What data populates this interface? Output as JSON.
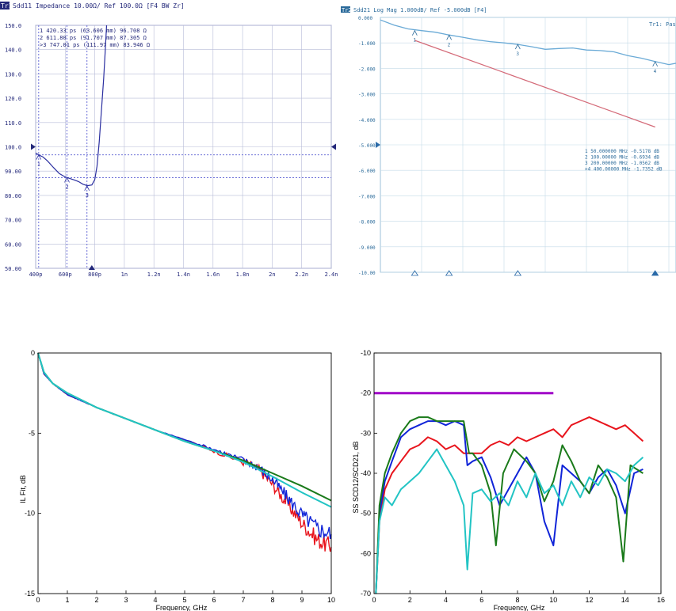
{
  "chart_data": [
    {
      "id": "tdr",
      "type": "line",
      "header": "Sdd11 Impedance 10.00Ω/ Ref 100.0Ω [F4 BW Zr]",
      "trace_tag": "Tr1",
      "colors": {
        "trace": "#2b2fa0",
        "grid": "#b8bcd8",
        "text": "#23287a",
        "marker_line": "#6c70d8"
      },
      "xlim": [
        0.4,
        2.4
      ],
      "ylim": [
        50,
        150
      ],
      "xticks": [
        {
          "v": 0.4,
          "label": "400p"
        },
        {
          "v": 0.6,
          "label": "600p"
        },
        {
          "v": 0.8,
          "label": "800p"
        },
        {
          "v": 1.0,
          "label": "1n"
        },
        {
          "v": 1.2,
          "label": "1.2n"
        },
        {
          "v": 1.4,
          "label": "1.4n"
        },
        {
          "v": 1.6,
          "label": "1.6n"
        },
        {
          "v": 1.8,
          "label": "1.8n"
        },
        {
          "v": 2.0,
          "label": "2n"
        },
        {
          "v": 2.2,
          "label": "2.2n"
        },
        {
          "v": 2.4,
          "label": "2.4n"
        }
      ],
      "yticks": [
        {
          "v": 150,
          "label": "150.0"
        },
        {
          "v": 140,
          "label": "140.0"
        },
        {
          "v": 130,
          "label": "130.0"
        },
        {
          "v": 120,
          "label": "120.0"
        },
        {
          "v": 110,
          "label": "110.0"
        },
        {
          "v": 100,
          "label": "100.0"
        },
        {
          "v": 90,
          "label": "90.00"
        },
        {
          "v": 80,
          "label": "80.00"
        },
        {
          "v": 70,
          "label": "70.00"
        },
        {
          "v": 60,
          "label": "60.00"
        },
        {
          "v": 50,
          "label": "50.00"
        }
      ],
      "markers": [
        {
          "label": "1",
          "x": 0.42033,
          "y": 96.708,
          "text": " 1   420.33 ps (63.606 mm)  96.708 Ω"
        },
        {
          "label": "2",
          "x": 0.6118,
          "y": 87.305,
          "text": " 2   611.80 ps (91.707 mm)  87.305 Ω"
        },
        {
          "label": "3",
          "x": 0.74701,
          "y": 83.946,
          "text": ">3   747.01 ps (111.97 mm)  83.946 Ω"
        }
      ],
      "ref_lines": [
        96.708,
        87.305
      ],
      "x": [
        0.4,
        0.42,
        0.45,
        0.48,
        0.52,
        0.56,
        0.6,
        0.63,
        0.66,
        0.69,
        0.72,
        0.75,
        0.78,
        0.8,
        0.815,
        0.83,
        0.845,
        0.86,
        0.87,
        0.88
      ],
      "y": [
        97.5,
        96.7,
        95.8,
        94.2,
        91.5,
        89.0,
        87.6,
        87.0,
        86.4,
        85.7,
        84.6,
        84.0,
        84.3,
        86.5,
        92.0,
        102.0,
        115.0,
        128.0,
        139.0,
        150.0
      ]
    },
    {
      "id": "vna",
      "type": "line",
      "header": "Sdd21 Log Mag 1.000dB/ Ref -5.000dB [F4]",
      "trace_tag": "Tr2",
      "status_text": "Tr1: Pass",
      "colors": {
        "trace": "#6aaad6",
        "limit": "#d46a78",
        "grid": "#c4dbe8",
        "text": "#2a6a9a",
        "marker": "#2a6aa8"
      },
      "xlim": [
        0,
        600
      ],
      "ylim": [
        -10,
        0
      ],
      "yticks": [
        {
          "v": 0,
          "label": "0.000"
        },
        {
          "v": -1,
          "label": "-1.000"
        },
        {
          "v": -2,
          "label": "-2.000"
        },
        {
          "v": -3,
          "label": "-3.000"
        },
        {
          "v": -4,
          "label": "-4.000"
        },
        {
          "v": -5,
          "label": "-5.000"
        },
        {
          "v": -6,
          "label": "-6.000"
        },
        {
          "v": -7,
          "label": "-7.000"
        },
        {
          "v": -8,
          "label": "-8.000"
        },
        {
          "v": -9,
          "label": "-9.000"
        },
        {
          "v": -10,
          "label": "-10.00"
        }
      ],
      "x_divisions": 10,
      "markers": [
        {
          "label": "1",
          "x": 50,
          "y": -0.5178,
          "text": " 1   50.000000 MHz -0.5178 dB"
        },
        {
          "label": "2",
          "x": 100,
          "y": -0.6934,
          "text": " 2  100.00000 MHz -0.6934 dB"
        },
        {
          "label": "3",
          "x": 200,
          "y": -1.0562,
          "text": " 3  200.00000 MHz -1.0562 dB"
        },
        {
          "label": "4",
          "x": 400,
          "y": -1.7352,
          "text": ">4  400.00000 MHz -1.7352 dB"
        }
      ],
      "limit_line": {
        "x": [
          50,
          400
        ],
        "y": [
          -0.9,
          -4.3
        ]
      },
      "x": [
        0,
        20,
        40,
        60,
        80,
        100,
        120,
        140,
        160,
        180,
        200,
        220,
        240,
        260,
        280,
        300,
        320,
        340,
        360,
        380,
        400,
        420,
        440,
        460,
        480,
        500,
        520,
        540,
        560,
        580,
        600
      ],
      "y": [
        -0.1,
        -0.3,
        -0.45,
        -0.52,
        -0.58,
        -0.69,
        -0.78,
        -0.88,
        -0.95,
        -1.0,
        -1.06,
        -1.15,
        -1.25,
        -1.22,
        -1.2,
        -1.28,
        -1.3,
        -1.35,
        -1.5,
        -1.6,
        -1.73,
        -1.85,
        -1.75,
        -1.82,
        -2.0,
        -1.85,
        -1.75,
        -2.05,
        -2.1,
        -1.95,
        -1.9
      ]
    },
    {
      "id": "il",
      "type": "line",
      "xlabel": "Frequency, GHz",
      "ylabel": "IL Fit, dB",
      "xlim": [
        0,
        10
      ],
      "ylim": [
        -15,
        0
      ],
      "xticks": [
        0,
        1,
        2,
        3,
        4,
        5,
        6,
        7,
        8,
        9,
        10
      ],
      "yticks": [
        0,
        -5,
        -10,
        -15
      ],
      "series": [
        {
          "color": "#e8141c",
          "x": [
            0,
            0.2,
            0.5,
            1,
            1.5,
            2,
            3,
            4,
            5,
            6,
            7,
            7.5,
            8,
            8.5,
            9,
            9.5,
            10
          ],
          "y": [
            0,
            -1.3,
            -1.9,
            -2.6,
            -3.0,
            -3.4,
            -4.1,
            -4.8,
            -5.4,
            -6.1,
            -6.8,
            -7.2,
            -8.2,
            -9.4,
            -10.6,
            -11.6,
            -12.1
          ],
          "noisy": true
        },
        {
          "color": "#1024d8",
          "x": [
            0,
            0.2,
            0.5,
            1,
            1.5,
            2,
            3,
            4,
            5,
            6,
            7,
            7.5,
            8,
            8.5,
            9,
            9.5,
            10
          ],
          "y": [
            0,
            -1.3,
            -1.9,
            -2.6,
            -3.0,
            -3.4,
            -4.1,
            -4.8,
            -5.4,
            -6.0,
            -6.7,
            -7.1,
            -7.9,
            -9.0,
            -10.1,
            -10.9,
            -11.3
          ],
          "noisy": true
        },
        {
          "color": "#1a7a1a",
          "x": [
            0,
            0.2,
            0.5,
            1,
            2,
            3,
            4,
            5,
            6,
            7,
            8,
            9,
            10
          ],
          "y": [
            0,
            -1.2,
            -1.9,
            -2.5,
            -3.4,
            -4.1,
            -4.8,
            -5.5,
            -6.1,
            -6.7,
            -7.5,
            -8.3,
            -9.2
          ]
        },
        {
          "color": "#22c4c4",
          "x": [
            0,
            0.2,
            0.5,
            1,
            2,
            3,
            4,
            5,
            6,
            7,
            8,
            9,
            10
          ],
          "y": [
            0,
            -1.2,
            -1.9,
            -2.5,
            -3.4,
            -4.1,
            -4.8,
            -5.5,
            -6.1,
            -6.8,
            -7.7,
            -8.7,
            -9.6
          ]
        }
      ]
    },
    {
      "id": "scd",
      "type": "line",
      "xlabel": "Frequency, GHz",
      "ylabel": "SS SCD12/SCD21, dB",
      "xlim": [
        0,
        16
      ],
      "ylim": [
        -70,
        -10
      ],
      "xticks": [
        0,
        2,
        4,
        6,
        8,
        10,
        12,
        14,
        16
      ],
      "yticks": [
        -10,
        -20,
        -30,
        -40,
        -50,
        -60,
        -70
      ],
      "limit": {
        "color": "#a000c8",
        "x": [
          0,
          10
        ],
        "y": [
          -20,
          -20
        ]
      },
      "series": [
        {
          "color": "#e8141c",
          "x": [
            0.1,
            0.3,
            0.6,
            1,
            1.5,
            2,
            2.5,
            3,
            3.5,
            4,
            4.5,
            5,
            5.5,
            6,
            6.5,
            7,
            7.5,
            8,
            8.5,
            9,
            9.5,
            10,
            10.5,
            11,
            11.5,
            12,
            12.5,
            13,
            13.5,
            14,
            14.5,
            15
          ],
          "y": [
            -70,
            -52,
            -44,
            -40,
            -37,
            -34,
            -33,
            -31,
            -32,
            -34,
            -33,
            -35,
            -35,
            -35,
            -33,
            -32,
            -33,
            -31,
            -32,
            -31,
            -30,
            -29,
            -31,
            -28,
            -27,
            -26,
            -27,
            -28,
            -29,
            -28,
            -30,
            -32
          ]
        },
        {
          "color": "#1024d8",
          "x": [
            0.1,
            0.3,
            0.6,
            1,
            1.5,
            2,
            2.5,
            3,
            3.5,
            4,
            4.5,
            5,
            5.2,
            5.5,
            6,
            6.5,
            7,
            7.5,
            8,
            8.5,
            9,
            9.5,
            10,
            10.5,
            11,
            11.5,
            12,
            12.5,
            13,
            13.5,
            14,
            14.5,
            15
          ],
          "y": [
            -70,
            -50,
            -42,
            -37,
            -31,
            -29,
            -28,
            -27,
            -27,
            -28,
            -27,
            -28,
            -38,
            -37,
            -36,
            -41,
            -48,
            -44,
            -40,
            -36,
            -40,
            -52,
            -58,
            -38,
            -40,
            -42,
            -45,
            -41,
            -39,
            -43,
            -50,
            -40,
            -39
          ]
        },
        {
          "color": "#1a7a1a",
          "x": [
            0.1,
            0.3,
            0.6,
            1,
            1.5,
            2,
            2.5,
            3,
            3.5,
            4,
            4.5,
            5,
            5.3,
            5.5,
            6,
            6.5,
            6.8,
            7.2,
            7.8,
            8.5,
            9,
            9.5,
            10,
            10.5,
            11,
            11.5,
            12,
            12.5,
            13,
            13.5,
            13.9,
            14.3,
            15
          ],
          "y": [
            -70,
            -48,
            -40,
            -35,
            -30,
            -27,
            -26,
            -26,
            -27,
            -27,
            -27,
            -27,
            -35,
            -35,
            -38,
            -45,
            -58,
            -40,
            -34,
            -37,
            -40,
            -47,
            -42,
            -33,
            -37,
            -42,
            -45,
            -38,
            -41,
            -46,
            -62,
            -38,
            -40
          ]
        },
        {
          "color": "#22c4c4",
          "x": [
            0.1,
            0.3,
            0.6,
            1,
            1.5,
            2,
            2.5,
            3,
            3.5,
            4,
            4.5,
            5,
            5.2,
            5.5,
            6,
            6.5,
            7,
            7.5,
            8,
            8.5,
            9,
            9.5,
            10,
            10.5,
            11,
            11.5,
            12,
            12.5,
            13,
            13.5,
            14,
            14.5,
            15
          ],
          "y": [
            -70,
            -52,
            -46,
            -48,
            -44,
            -42,
            -40,
            -37,
            -34,
            -38,
            -42,
            -48,
            -64,
            -45,
            -44,
            -47,
            -45,
            -48,
            -42,
            -46,
            -40,
            -45,
            -43,
            -48,
            -42,
            -46,
            -41,
            -43,
            -39,
            -40,
            -42,
            -38,
            -36
          ]
        }
      ]
    }
  ]
}
